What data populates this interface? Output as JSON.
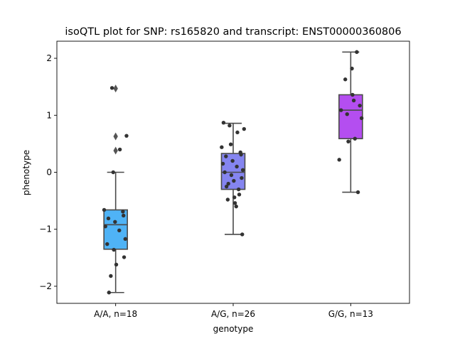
{
  "chart_data": {
    "type": "box",
    "title": "isoQTL plot for SNP: rs165820 and transcript: ENST00000360806",
    "xlabel": "genotype",
    "ylabel": "phenotype",
    "ylim": [
      -2.3,
      2.3
    ],
    "yticks": [
      -2,
      -1,
      0,
      1,
      2
    ],
    "ytick_labels": [
      "−2",
      "−1",
      "0",
      "1",
      "2"
    ],
    "grid": false,
    "categories": [
      "A/A, n=18",
      "A/G, n=26",
      "G/G, n=13"
    ],
    "colors": [
      "#4fb3f6",
      "#8585f0",
      "#b44ef0"
    ],
    "boxes": [
      {
        "q1": -1.35,
        "median": -0.92,
        "q3": -0.66,
        "whisker_low": -2.11,
        "whisker_high": 0.0,
        "outliers": [
          0.38,
          0.63,
          1.47
        ]
      },
      {
        "q1": -0.3,
        "median": 0.0,
        "q3": 0.33,
        "whisker_low": -1.09,
        "whisker_high": 0.86,
        "outliers": []
      },
      {
        "q1": 0.59,
        "median": 1.09,
        "q3": 1.36,
        "whisker_low": -0.35,
        "whisker_high": 2.11,
        "outliers": []
      }
    ],
    "points": [
      [
        -2.11,
        -1.82,
        -1.62,
        -1.49,
        -1.36,
        -1.26,
        -1.17,
        -1.02,
        -0.95,
        -0.87,
        -0.81,
        -0.76,
        -0.69,
        -0.66,
        0.0,
        0.4,
        0.64,
        1.48
      ],
      [
        -1.09,
        -0.6,
        -0.54,
        -0.48,
        -0.44,
        -0.39,
        -0.3,
        -0.25,
        -0.2,
        -0.15,
        -0.1,
        -0.05,
        0.0,
        0.04,
        0.1,
        0.15,
        0.2,
        0.28,
        0.31,
        0.35,
        0.44,
        0.49,
        0.7,
        0.76,
        0.82,
        0.87
      ],
      [
        -0.35,
        0.22,
        0.54,
        0.59,
        0.95,
        1.02,
        1.09,
        1.17,
        1.26,
        1.36,
        1.63,
        1.82,
        2.11
      ]
    ]
  }
}
